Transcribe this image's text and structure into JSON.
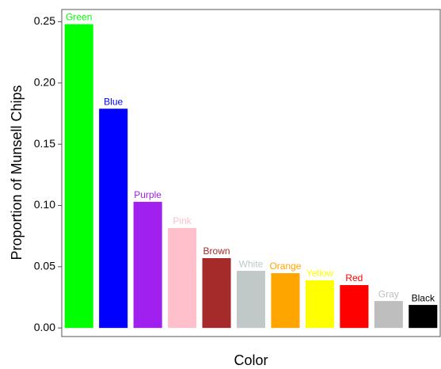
{
  "chart_data": {
    "type": "bar",
    "x_label": "Color",
    "y_label": "Proportion of Munsell Chips",
    "categories": [
      "Green",
      "Blue",
      "Purple",
      "Pink",
      "Brown",
      "White",
      "Orange",
      "Yellow",
      "Red",
      "Gray",
      "Black"
    ],
    "values": [
      0.248,
      0.179,
      0.103,
      0.0816,
      0.057,
      0.0466,
      0.0447,
      0.0389,
      0.035,
      0.022,
      0.0188
    ],
    "colors": [
      "#00ff00",
      "#0000ff",
      "#a020f0",
      "#ffc0cb",
      "#a52a2a",
      "#c0c8c8",
      "#ffa500",
      "#ffff00",
      "#ff0000",
      "#bebebe",
      "#000000"
    ],
    "ylim": [
      -0.007,
      0.26
    ],
    "yticks": [
      {
        "value": 0,
        "label": "0.00"
      },
      {
        "value": 0.05,
        "label": "0.05"
      },
      {
        "value": 0.1,
        "label": "0.10"
      },
      {
        "value": 0.15,
        "label": "0.15"
      },
      {
        "value": 0.2,
        "label": "0.20"
      },
      {
        "value": 0.25,
        "label": "0.25"
      }
    ],
    "grid": false
  }
}
